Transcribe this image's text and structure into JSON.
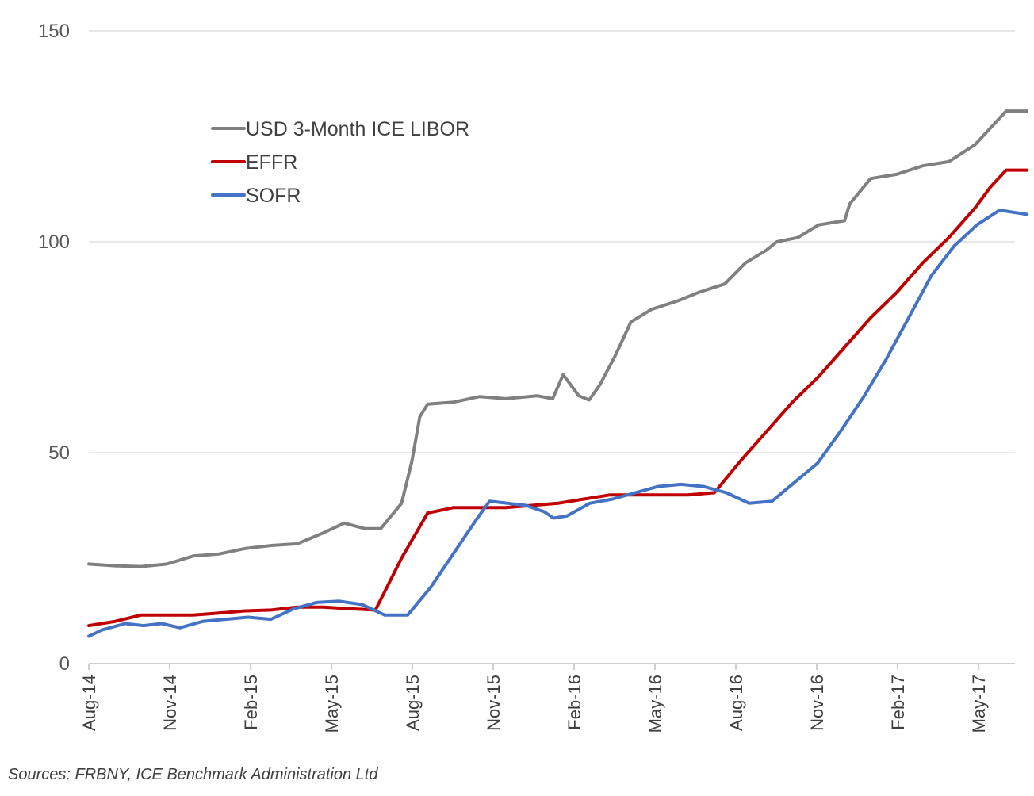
{
  "chart_data": {
    "type": "line",
    "title": "",
    "xlabel": "",
    "ylabel": "",
    "ylim": [
      0,
      150
    ],
    "yticks": [
      "0",
      "50",
      "100",
      "150"
    ],
    "x_tick_labels": [
      "Aug-14",
      "Nov-14",
      "Feb-15",
      "May-15",
      "Aug-15",
      "Nov-15",
      "Feb-16",
      "May-16",
      "Aug-16",
      "Nov-16",
      "Feb-17",
      "May-17"
    ],
    "x_end_index": 11.6,
    "grid": true,
    "legend_position": "upper-left",
    "series": [
      {
        "name": "USD 3-Month ICE LIBOR",
        "color": "#808080",
        "points": [
          [
            0,
            23.6
          ],
          [
            0.5,
            23.2
          ],
          [
            1,
            23.0
          ],
          [
            1.5,
            23.6
          ],
          [
            2,
            25.5
          ],
          [
            2.5,
            26.0
          ],
          [
            3,
            27.3
          ],
          [
            3.5,
            28.0
          ],
          [
            4,
            28.4
          ],
          [
            4.5,
            31.0
          ],
          [
            4.9,
            33.3
          ],
          [
            5.3,
            32.0
          ],
          [
            5.6,
            32.0
          ],
          [
            6,
            38.0
          ],
          [
            6.2,
            48.0
          ],
          [
            6.35,
            58.5
          ],
          [
            6.5,
            61.5
          ],
          [
            7,
            62.0
          ],
          [
            7.5,
            63.3
          ],
          [
            8,
            62.8
          ],
          [
            8.6,
            63.5
          ],
          [
            8.9,
            62.8
          ],
          [
            9.1,
            68.5
          ],
          [
            9.4,
            63.5
          ],
          [
            9.6,
            62.5
          ],
          [
            9.8,
            66.0
          ],
          [
            10.1,
            73.0
          ],
          [
            10.4,
            81.0
          ],
          [
            10.8,
            84.0
          ],
          [
            11.3,
            86.0
          ],
          [
            11.7,
            88.0
          ],
          [
            12.2,
            90.0
          ],
          [
            12.6,
            95.0
          ],
          [
            13,
            98.0
          ],
          [
            13.2,
            100.0
          ],
          [
            13.6,
            101.0
          ],
          [
            14,
            104.0
          ],
          [
            14.5,
            105.0
          ],
          [
            14.6,
            109.0
          ],
          [
            15,
            115.0
          ],
          [
            15.5,
            116.0
          ],
          [
            16,
            118.0
          ],
          [
            16.5,
            119.0
          ],
          [
            17,
            123.0
          ],
          [
            17.3,
            127.0
          ],
          [
            17.6,
            131.0
          ],
          [
            18,
            131.0
          ]
        ]
      },
      {
        "name": "EFFR",
        "color": "#c00000",
        "points": [
          [
            0,
            9.0
          ],
          [
            0.5,
            10.0
          ],
          [
            1,
            11.5
          ],
          [
            1.5,
            11.5
          ],
          [
            2,
            11.5
          ],
          [
            2.5,
            12.0
          ],
          [
            3,
            12.5
          ],
          [
            3.5,
            12.7
          ],
          [
            4,
            13.4
          ],
          [
            4.5,
            13.4
          ],
          [
            5,
            13.0
          ],
          [
            5.5,
            12.7
          ],
          [
            6,
            25.0
          ],
          [
            6.5,
            35.7
          ],
          [
            7,
            37.0
          ],
          [
            7.5,
            37.0
          ],
          [
            8,
            37.0
          ],
          [
            8.5,
            37.5
          ],
          [
            9,
            38.0
          ],
          [
            9.5,
            39.0
          ],
          [
            10,
            40.0
          ],
          [
            10.5,
            40.0
          ],
          [
            11,
            40.0
          ],
          [
            11.5,
            40.0
          ],
          [
            12,
            40.5
          ],
          [
            12.5,
            48.0
          ],
          [
            13,
            55.0
          ],
          [
            13.5,
            62.0
          ],
          [
            14,
            68.0
          ],
          [
            14.5,
            75.0
          ],
          [
            15,
            82.0
          ],
          [
            15.5,
            88.0
          ],
          [
            16,
            95.0
          ],
          [
            16.5,
            101.0
          ],
          [
            17,
            108.0
          ],
          [
            17.3,
            113.0
          ],
          [
            17.6,
            117.0
          ],
          [
            18,
            117.0
          ]
        ]
      },
      {
        "name": "SOFR",
        "color": "#4472c4",
        "points": [
          [
            0,
            6.5
          ],
          [
            0.3,
            8.0
          ],
          [
            0.8,
            9.5
          ],
          [
            1.2,
            9.0
          ],
          [
            1.6,
            9.5
          ],
          [
            2,
            8.5
          ],
          [
            2.5,
            10.0
          ],
          [
            3,
            10.5
          ],
          [
            3.5,
            11.0
          ],
          [
            4,
            10.5
          ],
          [
            4.5,
            13.0
          ],
          [
            5,
            14.5
          ],
          [
            5.5,
            14.8
          ],
          [
            6,
            14.0
          ],
          [
            6.5,
            11.5
          ],
          [
            7,
            11.5
          ],
          [
            7.5,
            18.0
          ],
          [
            8,
            26.0
          ],
          [
            8.5,
            34.0
          ],
          [
            8.8,
            38.5
          ],
          [
            9.2,
            38.0
          ],
          [
            9.6,
            37.5
          ],
          [
            10,
            36.0
          ],
          [
            10.2,
            34.5
          ],
          [
            10.5,
            35.0
          ],
          [
            11,
            38.0
          ],
          [
            11.5,
            39.0
          ],
          [
            12,
            40.5
          ],
          [
            12.5,
            42.0
          ],
          [
            13,
            42.5
          ],
          [
            13.5,
            42.0
          ],
          [
            14,
            40.5
          ],
          [
            14.5,
            38.0
          ],
          [
            15,
            38.5
          ],
          [
            15.5,
            43.0
          ],
          [
            16,
            47.5
          ],
          [
            16.5,
            55.0
          ],
          [
            17,
            63.0
          ],
          [
            17.5,
            72.0
          ],
          [
            18,
            82.0
          ],
          [
            18.5,
            92.0
          ],
          [
            19,
            99.0
          ],
          [
            19.5,
            104.0
          ],
          [
            20,
            107.5
          ],
          [
            20.3,
            107.0
          ],
          [
            20.6,
            106.5
          ]
        ]
      }
    ]
  },
  "source_note": "Sources: FRBNY, ICE Benchmark Administration Ltd"
}
